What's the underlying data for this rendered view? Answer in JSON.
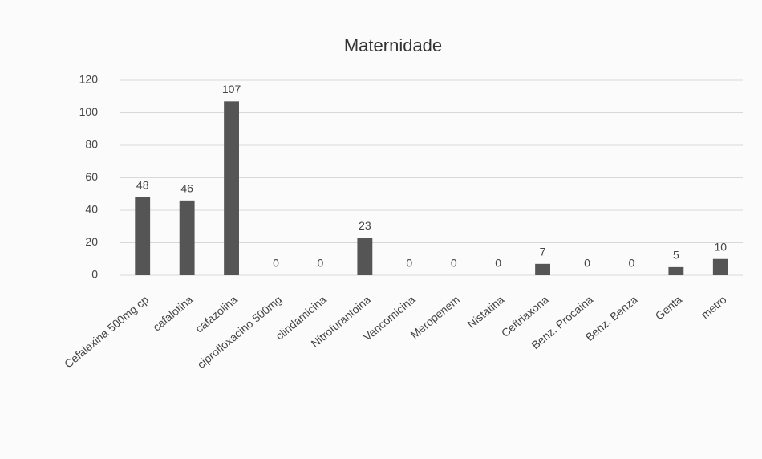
{
  "chart_data": {
    "type": "bar",
    "title": "Maternidade",
    "categories": [
      "Cefalexina 500mg cp",
      "cafalotina",
      "cafazolina",
      "ciprofloxacino 500mg",
      "clindamicina",
      "Nitrofurantoina",
      "Vancomicina",
      "Meropenem",
      "Nistatina",
      "Ceftriaxona",
      "Benz. Procaina",
      "Benz. Benza",
      "Genta",
      "metro"
    ],
    "values": [
      48,
      46,
      107,
      0,
      0,
      23,
      0,
      0,
      0,
      7,
      0,
      0,
      5,
      10
    ],
    "color": "#555555",
    "ylim": [
      0,
      120
    ],
    "yticks": [
      0,
      20,
      40,
      60,
      80,
      100,
      120
    ],
    "grid": true
  }
}
